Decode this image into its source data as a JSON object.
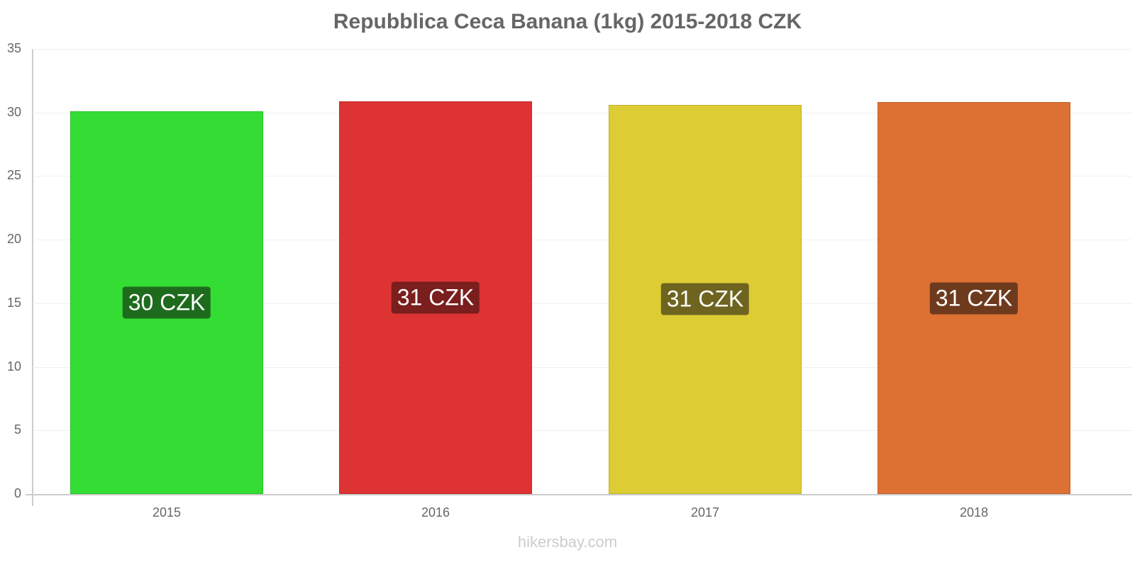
{
  "chart_data": {
    "type": "bar",
    "title": "Repubblica Ceca Banana (1kg) 2015-2018 CZK",
    "xlabel": "",
    "ylabel": "",
    "categories": [
      "2015",
      "2016",
      "2017",
      "2018"
    ],
    "values": [
      30.1,
      30.9,
      30.6,
      30.8
    ],
    "data_labels": [
      "30 CZK",
      "31 CZK",
      "31 CZK",
      "31 CZK"
    ],
    "colors": [
      "#33dd33",
      "#dd3333",
      "#ddcc33",
      "#dd7033"
    ],
    "label_colors": [
      "#1e6b1e",
      "#7a1e1e",
      "#6e6420",
      "#6e3a1e"
    ],
    "ylim": [
      0,
      35
    ],
    "yticks": [
      0,
      5,
      10,
      15,
      20,
      25,
      30,
      35
    ],
    "grid": true,
    "legend": "none"
  },
  "footer": {
    "credit": "hikersbay.com"
  }
}
